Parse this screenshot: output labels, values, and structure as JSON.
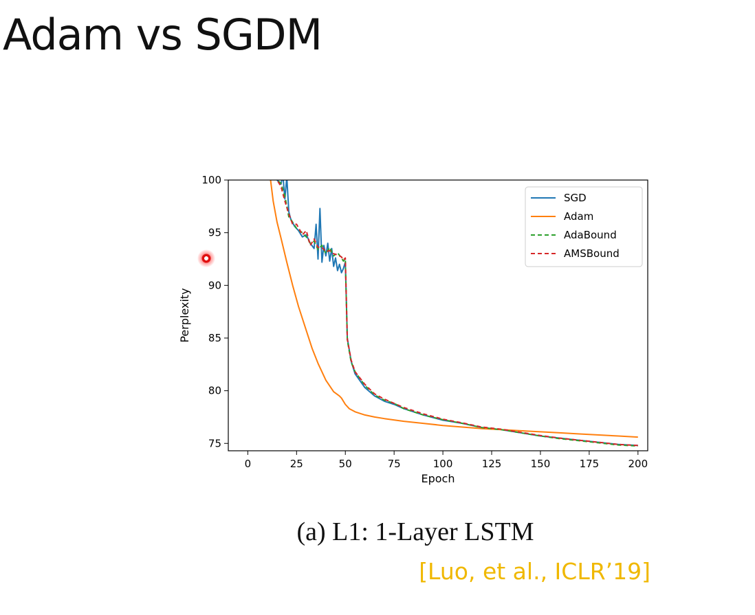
{
  "slide": {
    "title": "Adam vs SGDM",
    "caption": "(a) L1: 1-Layer LSTM",
    "citation": "[Luo, et al., ICLR’19]"
  },
  "chart_data": {
    "type": "line",
    "title": "",
    "xlabel": "Epoch",
    "ylabel": "Perplexity",
    "xlim": [
      -10,
      205
    ],
    "ylim": [
      74.3,
      100
    ],
    "xticks": [
      0,
      25,
      50,
      75,
      100,
      125,
      150,
      175,
      200
    ],
    "yticks": [
      75,
      80,
      85,
      90,
      95,
      100
    ],
    "grid": false,
    "legend_position": "top-right",
    "series": [
      {
        "name": "SGD",
        "color": "#1f77b4",
        "dash": false,
        "x": [
          12,
          15,
          17,
          18,
          19,
          20,
          21,
          22,
          24,
          26,
          28,
          30,
          32,
          34,
          35,
          36,
          37,
          38,
          39,
          40,
          41,
          42,
          43,
          44,
          45,
          46,
          47,
          48,
          49,
          50,
          51,
          53,
          55,
          60,
          65,
          70,
          75,
          80,
          90,
          100,
          110,
          120,
          130,
          140,
          150,
          160,
          170,
          180,
          190,
          200
        ],
        "y": [
          101,
          100,
          99.6,
          100.5,
          98.2,
          100.3,
          97.0,
          96.3,
          95.6,
          95.2,
          94.6,
          94.8,
          94.0,
          93.5,
          95.8,
          92.5,
          97.3,
          92.2,
          93.8,
          92.8,
          94.0,
          92.3,
          93.5,
          91.8,
          92.6,
          91.4,
          92.0,
          91.2,
          91.6,
          92.2,
          85.0,
          82.8,
          81.6,
          80.3,
          79.5,
          79.0,
          78.7,
          78.3,
          77.7,
          77.2,
          76.9,
          76.5,
          76.3,
          76.0,
          75.7,
          75.5,
          75.3,
          75.1,
          74.9,
          74.8
        ]
      },
      {
        "name": "Adam",
        "color": "#ff7f0e",
        "dash": false,
        "x": [
          11,
          13,
          15,
          17,
          20,
          23,
          26,
          30,
          33,
          36,
          40,
          44,
          47,
          48,
          50,
          52,
          55,
          60,
          65,
          70,
          80,
          90,
          100,
          110,
          120,
          130,
          140,
          150,
          160,
          170,
          180,
          190,
          200
        ],
        "y": [
          101,
          98.0,
          96.0,
          94.5,
          92.2,
          90.0,
          88.0,
          85.7,
          84.0,
          82.6,
          81.0,
          79.9,
          79.5,
          79.3,
          78.7,
          78.3,
          78.0,
          77.7,
          77.5,
          77.35,
          77.1,
          76.9,
          76.7,
          76.55,
          76.4,
          76.3,
          76.2,
          76.1,
          76.0,
          75.9,
          75.8,
          75.7,
          75.6
        ]
      },
      {
        "name": "AdaBound",
        "color": "#2ca02c",
        "dash": true,
        "x": [
          12,
          15,
          17,
          19,
          21,
          23,
          25,
          28,
          30,
          32,
          34,
          36,
          38,
          40,
          42,
          44,
          46,
          48,
          49,
          50,
          51,
          53,
          55,
          60,
          65,
          70,
          75,
          80,
          90,
          100,
          110,
          120,
          130,
          140,
          150,
          160,
          170,
          180,
          190,
          200
        ],
        "y": [
          101,
          100,
          99.7,
          98.5,
          96.5,
          96.0,
          95.4,
          95.0,
          94.6,
          94.0,
          94.2,
          93.4,
          93.8,
          93.0,
          93.6,
          92.8,
          93.1,
          92.6,
          92.3,
          92.5,
          84.8,
          82.7,
          81.8,
          80.5,
          79.6,
          79.1,
          78.8,
          78.3,
          77.7,
          77.25,
          76.9,
          76.5,
          76.3,
          76.0,
          75.7,
          75.45,
          75.25,
          75.05,
          74.85,
          74.75
        ]
      },
      {
        "name": "AMSBound",
        "color": "#d62728",
        "dash": true,
        "x": [
          12,
          15,
          17,
          19,
          21,
          23,
          25,
          28,
          30,
          32,
          34,
          36,
          38,
          40,
          42,
          44,
          46,
          48,
          49,
          50,
          51,
          53,
          55,
          60,
          65,
          70,
          75,
          80,
          90,
          100,
          110,
          120,
          130,
          140,
          150,
          160,
          170,
          180,
          190,
          200
        ],
        "y": [
          101,
          100,
          99.4,
          98.0,
          96.8,
          95.8,
          95.8,
          94.8,
          95.2,
          93.8,
          94.4,
          93.6,
          93.6,
          93.2,
          93.3,
          93.0,
          92.9,
          92.7,
          92.4,
          92.6,
          84.9,
          82.9,
          81.8,
          80.6,
          79.7,
          79.2,
          78.8,
          78.4,
          77.8,
          77.3,
          76.95,
          76.55,
          76.35,
          76.05,
          75.75,
          75.5,
          75.3,
          75.1,
          74.9,
          74.8
        ]
      }
    ]
  }
}
